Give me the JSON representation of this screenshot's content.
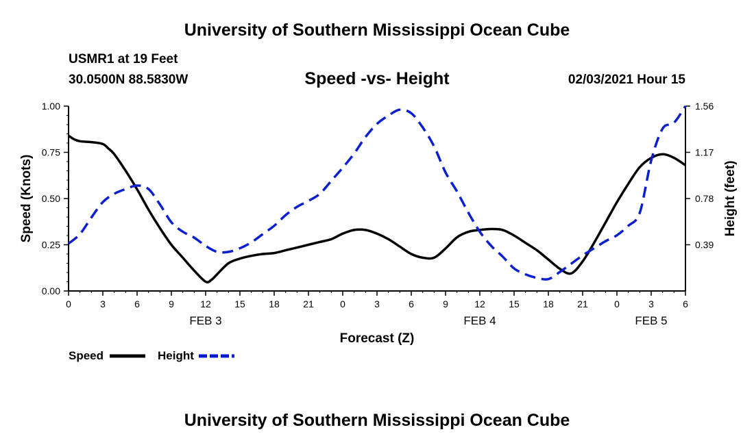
{
  "header": {
    "title": "University of Southern Mississippi Ocean Cube",
    "station": "USMR1 at 19 Feet",
    "coords": "30.0500N 88.5830W",
    "subtitle": "Speed -vs- Height",
    "datetime": "02/03/2021 Hour 15"
  },
  "footer": {
    "title": "University of Southern Mississippi Ocean Cube"
  },
  "chart_data": {
    "type": "line",
    "xlabel": "Forecast (Z)",
    "ylabel": "Speed (Knots)",
    "y2label": "Height (feet)",
    "xlim": [
      0,
      54
    ],
    "ylim": [
      0,
      1
    ],
    "y2lim": [
      0,
      1.56
    ],
    "x_ticks": [
      0,
      3,
      6,
      9,
      12,
      15,
      18,
      21,
      24,
      27,
      30,
      33,
      36,
      39,
      42,
      45,
      48,
      51,
      54
    ],
    "x_tick_labels": [
      "0",
      "3",
      "6",
      "9",
      "12",
      "15",
      "18",
      "21",
      "0",
      "3",
      "6",
      "9",
      "12",
      "15",
      "18",
      "21",
      "0",
      "3",
      "6"
    ],
    "y_ticks": [
      0,
      0.25,
      0.5,
      0.75,
      1
    ],
    "y_tick_labels": [
      "0.00",
      "0.25",
      "0.50",
      "0.75",
      "1.00"
    ],
    "y2_ticks": [
      0.39,
      0.78,
      1.17,
      1.56
    ],
    "y2_tick_labels": [
      "0.39",
      "0.78",
      "1.17",
      "1.56"
    ],
    "date_labels": [
      {
        "x": 12,
        "label": "FEB 3"
      },
      {
        "x": 36,
        "label": "FEB 4"
      },
      {
        "x": 51,
        "label": "FEB 5"
      }
    ],
    "series": [
      {
        "name": "Speed",
        "axis": "left",
        "color": "#000000",
        "style": "solid",
        "x": [
          0,
          0.5,
          1,
          2,
          3,
          3.5,
          4,
          5,
          6,
          7,
          8,
          9,
          10,
          11,
          12,
          12.5,
          13,
          14,
          15,
          16,
          17,
          18,
          19,
          20,
          21,
          22,
          23,
          24,
          25,
          26,
          27,
          28,
          29,
          30,
          31,
          32,
          33,
          34,
          35,
          36,
          37,
          38,
          39,
          40,
          41,
          42,
          43,
          44,
          45,
          46,
          47,
          48,
          49,
          50,
          51,
          52,
          53,
          54
        ],
        "values": [
          0.84,
          0.82,
          0.81,
          0.805,
          0.795,
          0.77,
          0.74,
          0.65,
          0.55,
          0.44,
          0.34,
          0.25,
          0.18,
          0.11,
          0.05,
          0.06,
          0.09,
          0.15,
          0.175,
          0.19,
          0.2,
          0.205,
          0.22,
          0.235,
          0.25,
          0.265,
          0.28,
          0.31,
          0.33,
          0.33,
          0.31,
          0.28,
          0.24,
          0.2,
          0.18,
          0.18,
          0.23,
          0.29,
          0.32,
          0.33,
          0.335,
          0.33,
          0.3,
          0.26,
          0.22,
          0.17,
          0.12,
          0.095,
          0.16,
          0.26,
          0.37,
          0.48,
          0.58,
          0.67,
          0.72,
          0.74,
          0.72,
          0.68
        ]
      },
      {
        "name": "Height",
        "axis": "right",
        "color": "#0a1fd0",
        "style": "dashed",
        "x": [
          0,
          1,
          2,
          3,
          4,
          5,
          6,
          7,
          8,
          9,
          10,
          11,
          12,
          13,
          14,
          15,
          16,
          17,
          18,
          19,
          20,
          21,
          22,
          23,
          24,
          25,
          26,
          27,
          28,
          29,
          30,
          31,
          32,
          33,
          34,
          35,
          36,
          37,
          38,
          39,
          40,
          41,
          42,
          43,
          44,
          45,
          46,
          47,
          48,
          49,
          50,
          51,
          52,
          53,
          54
        ],
        "values": [
          0.4,
          0.48,
          0.62,
          0.75,
          0.82,
          0.86,
          0.89,
          0.86,
          0.73,
          0.58,
          0.5,
          0.45,
          0.38,
          0.33,
          0.33,
          0.36,
          0.41,
          0.48,
          0.55,
          0.64,
          0.71,
          0.76,
          0.82,
          0.93,
          1.04,
          1.16,
          1.3,
          1.41,
          1.48,
          1.53,
          1.5,
          1.38,
          1.22,
          1.0,
          0.84,
          0.66,
          0.5,
          0.38,
          0.29,
          0.19,
          0.14,
          0.11,
          0.1,
          0.16,
          0.23,
          0.3,
          0.36,
          0.42,
          0.47,
          0.55,
          0.66,
          1.1,
          1.37,
          1.42,
          1.56
        ]
      }
    ],
    "legend": [
      {
        "label": "Speed",
        "color": "#000000",
        "style": "solid"
      },
      {
        "label": "Height",
        "color": "#0a1fd0",
        "style": "dashed"
      }
    ]
  }
}
